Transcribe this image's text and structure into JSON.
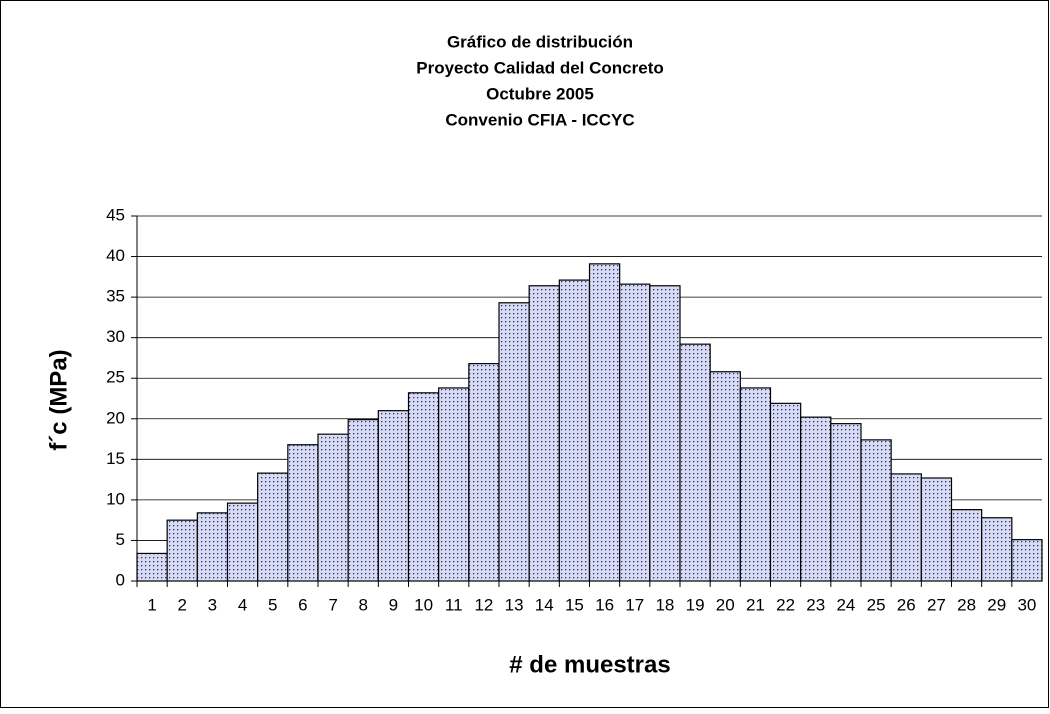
{
  "chart_data": {
    "type": "bar",
    "title": [
      "Gráfico de distribución",
      "Proyecto Calidad del Concreto",
      "Octubre 2005",
      "Convenio CFIA - ICCYC"
    ],
    "x_label": "# de muestras",
    "y_label": "f´c (MPa)",
    "categories": [
      "1",
      "2",
      "3",
      "4",
      "5",
      "6",
      "7",
      "8",
      "9",
      "10",
      "11",
      "12",
      "13",
      "14",
      "15",
      "16",
      "17",
      "18",
      "19",
      "20",
      "21",
      "22",
      "23",
      "24",
      "25",
      "26",
      "27",
      "28",
      "29",
      "30"
    ],
    "values": [
      3.4,
      7.5,
      8.4,
      9.6,
      13.3,
      16.8,
      18.1,
      19.9,
      21.0,
      23.2,
      23.8,
      26.8,
      34.3,
      36.4,
      37.1,
      39.1,
      36.6,
      36.4,
      29.2,
      25.8,
      23.8,
      21.9,
      20.2,
      19.4,
      17.4,
      13.2,
      12.7,
      8.8,
      7.8,
      5.1
    ],
    "color": "#d8dcf2",
    "ylim": [
      0,
      45
    ],
    "yticks": [
      0,
      5,
      10,
      15,
      20,
      25,
      30,
      35,
      40,
      45
    ],
    "grid": true
  }
}
